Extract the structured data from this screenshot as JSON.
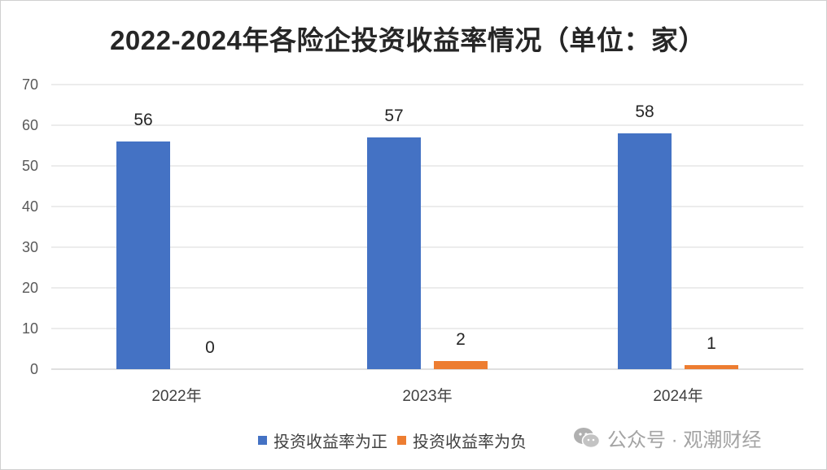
{
  "colors": {
    "series_positive": "#4472C4",
    "series_negative": "#ED7D31",
    "grid": "#d9d9d9",
    "axis": "#bfbfbf"
  },
  "chart_data": {
    "type": "bar",
    "title": "2022-2024年各险企投资收益率情况（单位：家）",
    "categories": [
      "2022年",
      "2023年",
      "2024年"
    ],
    "series": [
      {
        "name": "投资收益率为正",
        "values": [
          56,
          57,
          58
        ]
      },
      {
        "name": "投资收益率为负",
        "values": [
          0,
          2,
          1
        ]
      }
    ],
    "ylim": [
      0,
      70
    ],
    "yticks": [
      0,
      10,
      20,
      30,
      40,
      50,
      60,
      70
    ],
    "grid": true,
    "legend_position": "bottom"
  },
  "watermark": {
    "icon": "wechat-icon",
    "text": "公众号 · 观潮财经"
  }
}
